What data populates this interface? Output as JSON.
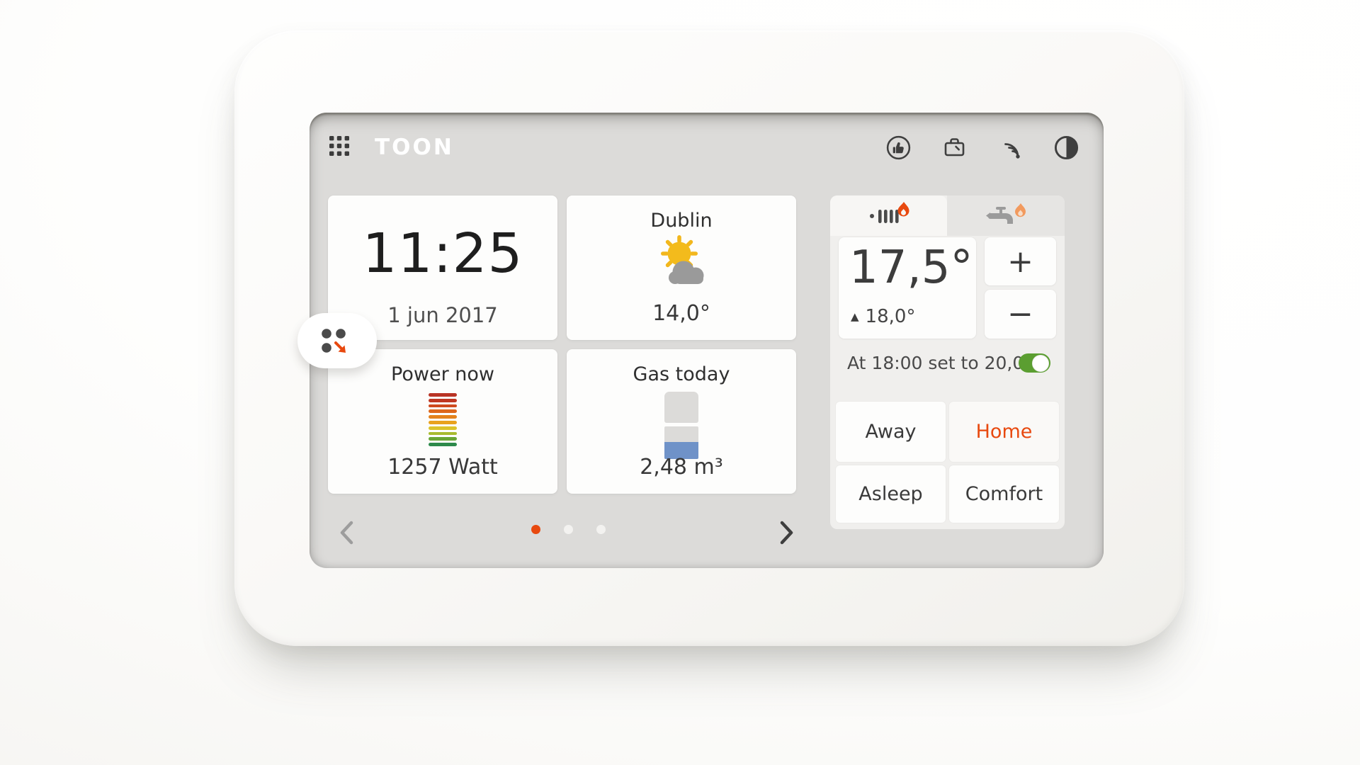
{
  "colors": {
    "accent": "#e8490f",
    "toggle-green": "#5b9e31",
    "gas-blue": "#6f92c8",
    "icon-dark": "#3f3f3f",
    "screen-bg": "#dcdbd9",
    "panel-bg": "#f0efed",
    "tile-bg": "#fdfdfc"
  },
  "topbar": {
    "logo": "TOON",
    "menu_icon": "grid-menu-icon",
    "status_icons": [
      {
        "name": "usage-thumbs-up-icon"
      },
      {
        "name": "service-case-icon"
      },
      {
        "name": "wifi-icon"
      },
      {
        "name": "display-contrast-icon"
      }
    ]
  },
  "tiles": {
    "clock": {
      "time": "11:25",
      "date": "1 jun 2017"
    },
    "weather": {
      "city": "Dublin",
      "temperature": "14,0°",
      "condition_icon": "sun-cloud-icon"
    },
    "power": {
      "title": "Power now",
      "value": "1257 Watt",
      "bar_colors": [
        "#b93425",
        "#bf3722",
        "#cf4a1e",
        "#dd671b",
        "#e4821c",
        "#e9a21e",
        "#dcc32a",
        "#a9bb2f",
        "#6aa636",
        "#2d8a4b"
      ]
    },
    "gas": {
      "title": "Gas today",
      "value": "2,48 m³"
    }
  },
  "pager": {
    "prev_icon": "chevron-left-icon",
    "next_icon": "chevron-right-icon",
    "dots": [
      {
        "active": true
      },
      {
        "active": false
      },
      {
        "active": false
      }
    ]
  },
  "thermostat": {
    "tabs": [
      {
        "icon": "radiator-flame-icon",
        "active": true
      },
      {
        "icon": "tap-flame-icon",
        "active": false
      }
    ],
    "current_temperature": "17,5°",
    "target_temperature": "18,0°",
    "target_marker": "▲",
    "increase": "+",
    "decrease": "−",
    "schedule_text": "At 18:00 set to 20,0°",
    "schedule_on": true,
    "presets": [
      {
        "label": "Away",
        "active": false
      },
      {
        "label": "Home",
        "active": true
      },
      {
        "label": "Asleep",
        "active": false
      },
      {
        "label": "Comfort",
        "active": false
      }
    ]
  }
}
